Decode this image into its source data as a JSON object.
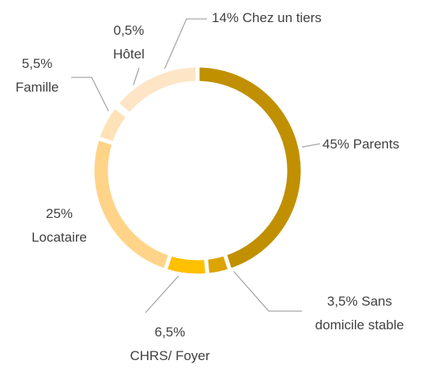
{
  "chart_data": {
    "type": "donut",
    "categories": [
      "Parents",
      "Sans domicile stable",
      "CHRS/ Foyer",
      "Locataire",
      "Famille",
      "Hôtel",
      "Chez un tiers"
    ],
    "values": [
      45,
      3.5,
      6.5,
      25,
      5.5,
      0.5,
      14
    ],
    "value_labels": [
      "45%",
      "3,5%",
      "6,5%",
      "25%",
      "5,5%",
      "0,5%",
      "14%"
    ],
    "colors": [
      "#c09000",
      "#dba400",
      "#ffc000",
      "#ffd489",
      "#ffe2b8",
      "#ffe6c6",
      "#fde5c6"
    ]
  }
}
